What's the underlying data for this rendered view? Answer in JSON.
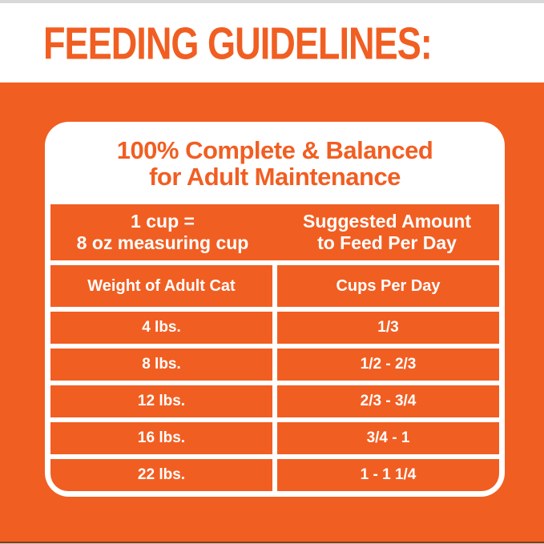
{
  "colors": {
    "orange": "#F15E22",
    "white": "#FFFFFF",
    "top_strip_gray": "#D8D8D8"
  },
  "header": {
    "title": "FEEDING GUIDELINES:"
  },
  "panel": {
    "title_line1": "100% Complete & Balanced",
    "title_line2": "for Adult Maintenance",
    "table": {
      "header_left_line1": "1 cup =",
      "header_left_line2": "8 oz measuring cup",
      "header_right_line1": "Suggested Amount",
      "header_right_line2": "to Feed Per Day",
      "column_left": "Weight of Adult Cat",
      "column_right": "Cups Per Day",
      "rows": [
        {
          "weight": "4 lbs.",
          "cups": "1/3"
        },
        {
          "weight": "8 lbs.",
          "cups": "1/2 - 2/3"
        },
        {
          "weight": "12 lbs.",
          "cups": "2/3 - 3/4"
        },
        {
          "weight": "16 lbs.",
          "cups": "3/4 - 1"
        },
        {
          "weight": "22 lbs.",
          "cups": "1 - 1 1/4"
        }
      ]
    }
  }
}
